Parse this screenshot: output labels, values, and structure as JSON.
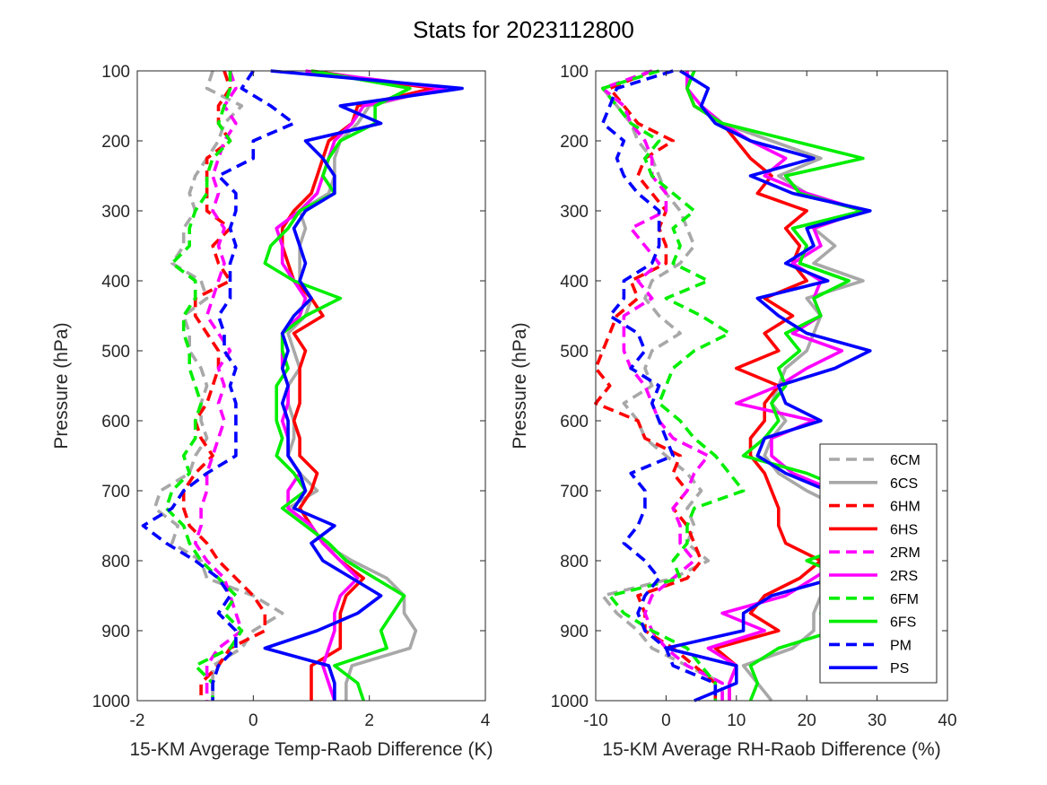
{
  "title": "Stats for 2023112800",
  "legend": {
    "placement": "bottom-right of right panel"
  },
  "styles": {
    "6CM": {
      "color": "#a8a8a8",
      "dash": true
    },
    "6CS": {
      "color": "#a8a8a8",
      "dash": false
    },
    "6HM": {
      "color": "#ff0000",
      "dash": true
    },
    "6HS": {
      "color": "#ff0000",
      "dash": false
    },
    "2RM": {
      "color": "#ff00ff",
      "dash": true
    },
    "2RS": {
      "color": "#ff00ff",
      "dash": false
    },
    "6FM": {
      "color": "#00ee00",
      "dash": true
    },
    "6FS": {
      "color": "#00ee00",
      "dash": false
    },
    "PM": {
      "color": "#0000ff",
      "dash": true
    },
    "PS": {
      "color": "#0000ff",
      "dash": false
    }
  },
  "chart_data": [
    {
      "type": "line",
      "orientation": "profile",
      "xlabel": "15-KM Avgerage Temp-Raob Difference (K)",
      "ylabel": "Pressure (hPa)",
      "xlim": [
        -2,
        4
      ],
      "ylim": [
        100,
        1000
      ],
      "y_reversed": true,
      "xticks": [
        -2,
        0,
        2,
        4
      ],
      "yticks": [
        100,
        200,
        300,
        400,
        500,
        600,
        700,
        800,
        900,
        1000
      ],
      "grid": false,
      "pressure": [
        100,
        125,
        150,
        175,
        200,
        225,
        250,
        275,
        300,
        325,
        350,
        375,
        400,
        425,
        450,
        475,
        500,
        525,
        550,
        575,
        600,
        625,
        650,
        675,
        700,
        725,
        750,
        775,
        800,
        825,
        850,
        875,
        900,
        925,
        950,
        975,
        1000
      ],
      "series": [
        {
          "name": "6CM",
          "values": [
            -0.7,
            -0.8,
            -0.2,
            -0.5,
            -0.6,
            -0.8,
            -1.0,
            -1.1,
            -1.0,
            -1.2,
            -1.2,
            -1.4,
            -0.9,
            -0.8,
            -1.2,
            -1.1,
            -1.1,
            -0.9,
            -0.8,
            -0.9,
            -0.9,
            -0.8,
            -1.0,
            -1.1,
            -1.6,
            -1.7,
            -1.3,
            -1.4,
            -0.9,
            -0.8,
            0.0,
            0.5,
            0.0,
            -0.2,
            -0.7,
            -0.7,
            -0.7
          ]
        },
        {
          "name": "6CS",
          "values": [
            1.0,
            3.2,
            2.0,
            1.8,
            1.5,
            1.4,
            1.4,
            1.3,
            0.8,
            0.9,
            0.8,
            0.8,
            0.8,
            1.0,
            0.9,
            0.6,
            0.7,
            0.8,
            0.6,
            0.6,
            0.7,
            0.7,
            0.6,
            0.8,
            1.1,
            0.6,
            1.0,
            1.2,
            1.7,
            2.3,
            2.6,
            2.6,
            2.8,
            2.7,
            1.7,
            1.6,
            1.6
          ]
        },
        {
          "name": "6HM",
          "values": [
            -0.5,
            -0.4,
            -0.6,
            -0.6,
            -0.4,
            -0.8,
            -0.8,
            -0.8,
            -0.8,
            -0.4,
            -0.7,
            -0.6,
            -0.4,
            -1.0,
            -1.0,
            -0.8,
            -0.6,
            -0.6,
            -0.7,
            -0.8,
            -1.0,
            -0.9,
            -0.7,
            -1.0,
            -1.2,
            -1.2,
            -1.1,
            -0.8,
            -0.6,
            -0.3,
            0.0,
            0.2,
            0.2,
            -0.4,
            -0.6,
            -0.9,
            -0.9
          ]
        },
        {
          "name": "6HS",
          "values": [
            1.0,
            3.1,
            1.8,
            1.7,
            1.3,
            1.2,
            1.1,
            1.0,
            0.7,
            0.5,
            0.5,
            0.6,
            0.7,
            1.0,
            1.2,
            0.7,
            0.9,
            0.8,
            0.8,
            0.8,
            0.7,
            0.8,
            0.8,
            1.1,
            1.0,
            0.8,
            1.0,
            1.2,
            1.5,
            1.9,
            1.6,
            1.5,
            1.5,
            1.5,
            1.0,
            1.0,
            1.0
          ]
        },
        {
          "name": "2RM",
          "values": [
            -0.4,
            -0.3,
            -0.5,
            -0.3,
            -0.5,
            -0.6,
            -0.7,
            -0.6,
            -0.7,
            -0.5,
            -0.6,
            -0.5,
            -0.6,
            -0.7,
            -0.8,
            -0.6,
            -0.4,
            -0.6,
            -0.5,
            -0.6,
            -0.5,
            -0.6,
            -0.7,
            -0.8,
            -0.8,
            -0.9,
            -0.9,
            -1.0,
            -0.8,
            -0.5,
            -0.4,
            -0.3,
            -0.2,
            -0.6,
            -0.8,
            -0.8,
            -0.8
          ]
        },
        {
          "name": "2RS",
          "values": [
            0.9,
            3.3,
            1.9,
            1.7,
            1.4,
            1.3,
            1.2,
            1.1,
            0.8,
            0.4,
            0.5,
            0.5,
            0.7,
            0.9,
            0.8,
            0.5,
            0.5,
            0.5,
            0.6,
            0.6,
            0.5,
            0.6,
            0.6,
            0.8,
            0.6,
            0.6,
            1.0,
            1.2,
            1.5,
            1.8,
            1.5,
            1.4,
            1.4,
            1.3,
            1.2,
            1.3,
            1.4
          ]
        },
        {
          "name": "6FM",
          "values": [
            -0.4,
            -0.4,
            -0.5,
            -0.6,
            -0.4,
            -0.7,
            -0.8,
            -0.8,
            -1.0,
            -1.1,
            -1.1,
            -1.4,
            -1.0,
            -1.0,
            -1.2,
            -1.2,
            -1.1,
            -1.1,
            -1.0,
            -0.9,
            -1.0,
            -1.0,
            -1.2,
            -1.1,
            -1.4,
            -1.5,
            -1.2,
            -1.1,
            -0.9,
            -0.6,
            -0.3,
            -0.5,
            -0.2,
            -0.4,
            -1.0,
            -0.7,
            -0.7
          ]
        },
        {
          "name": "6FS",
          "values": [
            1.0,
            2.7,
            2.1,
            2.1,
            1.5,
            1.3,
            1.2,
            1.4,
            0.8,
            0.6,
            0.3,
            0.2,
            0.7,
            1.5,
            0.9,
            0.5,
            0.5,
            0.6,
            0.4,
            0.4,
            0.4,
            0.5,
            0.4,
            0.7,
            0.9,
            0.5,
            0.9,
            1.3,
            1.6,
            2.1,
            2.6,
            2.4,
            2.2,
            2.3,
            1.4,
            1.8,
            1.9
          ]
        },
        {
          "name": "PM",
          "values": [
            0.0,
            -0.2,
            0.3,
            0.7,
            0.0,
            0.0,
            -0.6,
            -0.3,
            -0.3,
            -0.4,
            -0.3,
            -0.4,
            -0.4,
            -0.4,
            -0.6,
            -0.5,
            -0.5,
            -0.3,
            -0.4,
            -0.3,
            -0.3,
            -0.3,
            -0.3,
            -0.8,
            -1.2,
            -1.4,
            -1.9,
            -1.5,
            -1.0,
            -0.6,
            -0.4,
            -0.6,
            -0.3,
            -0.3,
            -0.6,
            -0.7,
            -0.7
          ]
        },
        {
          "name": "PS",
          "values": [
            0.3,
            3.6,
            1.5,
            2.2,
            0.9,
            1.2,
            1.4,
            1.4,
            0.9,
            0.7,
            0.8,
            0.9,
            0.8,
            1.0,
            0.7,
            0.5,
            0.6,
            0.5,
            0.6,
            0.5,
            0.6,
            0.6,
            0.6,
            0.8,
            0.9,
            0.7,
            1.4,
            1.0,
            1.2,
            1.7,
            2.2,
            1.8,
            1.1,
            0.2,
            1.3,
            1.4,
            1.4
          ]
        }
      ]
    },
    {
      "type": "line",
      "orientation": "profile",
      "xlabel": "15-KM Average RH-Raob Difference (%)",
      "ylabel": "Pressure (hPa)",
      "xlim": [
        -10,
        40
      ],
      "ylim": [
        100,
        1000
      ],
      "y_reversed": true,
      "xticks": [
        -10,
        0,
        10,
        20,
        30,
        40
      ],
      "yticks": [
        100,
        200,
        300,
        400,
        500,
        600,
        700,
        800,
        900,
        1000
      ],
      "grid": false,
      "pressure": [
        100,
        125,
        150,
        175,
        200,
        225,
        250,
        275,
        300,
        325,
        350,
        375,
        400,
        425,
        450,
        475,
        500,
        525,
        550,
        575,
        600,
        625,
        650,
        675,
        700,
        725,
        750,
        775,
        800,
        825,
        850,
        875,
        900,
        925,
        950,
        975,
        1000
      ],
      "series": [
        {
          "name": "6CM",
          "values": [
            -2,
            -9,
            -7,
            -5,
            -4,
            -2,
            -1,
            0,
            2,
            3,
            4,
            2,
            -2,
            -3,
            -1,
            2,
            -2,
            -3,
            -2,
            -6,
            -4,
            -3,
            0,
            3,
            5,
            3,
            4,
            3,
            6,
            1,
            -9,
            -7,
            -4,
            -2,
            3,
            8,
            8
          ]
        },
        {
          "name": "6CS",
          "values": [
            4,
            3,
            4,
            8,
            15,
            22,
            16,
            20,
            28,
            21,
            24,
            21,
            28,
            20,
            22,
            21,
            20,
            17,
            16,
            15,
            17,
            15,
            14,
            16,
            20,
            25,
            24,
            26,
            25,
            22,
            22,
            21,
            21,
            18,
            11,
            13,
            15
          ]
        },
        {
          "name": "6HM",
          "values": [
            -2,
            -8,
            -6,
            -4,
            1,
            -3,
            -4,
            -2,
            0,
            -1,
            0,
            0,
            -5,
            -4,
            -7,
            -8,
            -9,
            -10,
            -8,
            -10,
            -4,
            -3,
            2,
            1,
            3,
            1,
            3,
            4,
            5,
            3,
            -4,
            -3,
            -3,
            1,
            4,
            7,
            7
          ]
        },
        {
          "name": "6HS",
          "values": [
            3,
            3,
            4,
            8,
            10,
            12,
            15,
            13,
            20,
            17,
            19,
            18,
            20,
            14,
            18,
            14,
            16,
            10,
            16,
            14,
            14,
            12,
            12,
            14,
            15,
            16,
            16,
            17,
            22,
            19,
            14,
            12,
            16,
            7,
            10,
            9,
            9
          ]
        },
        {
          "name": "2RM",
          "values": [
            -2,
            -9,
            -6,
            -5,
            -3,
            -2,
            -2,
            0,
            0,
            -5,
            -3,
            -1,
            -4,
            -2,
            -6,
            -6,
            -6,
            -5,
            -3,
            -2,
            -1,
            1,
            6,
            4,
            3,
            1,
            2,
            2,
            4,
            1,
            -2,
            -3,
            -2,
            0,
            3,
            8,
            8
          ]
        },
        {
          "name": "2RS",
          "values": [
            3,
            3,
            5,
            8,
            12,
            17,
            14,
            20,
            28,
            21,
            22,
            18,
            22,
            21,
            22,
            18,
            25,
            20,
            16,
            10,
            21,
            15,
            15,
            18,
            24,
            24,
            25,
            27,
            25,
            21,
            17,
            8,
            14,
            6,
            10,
            9,
            9
          ]
        },
        {
          "name": "6FM",
          "values": [
            -1,
            -9,
            -7,
            -5,
            -1,
            -3,
            -2,
            1,
            4,
            1,
            2,
            1,
            6,
            0,
            5,
            9,
            4,
            1,
            0,
            -1,
            2,
            4,
            7,
            9,
            11,
            4,
            3,
            3,
            1,
            2,
            -8,
            -6,
            -2,
            3,
            5,
            7,
            7
          ]
        },
        {
          "name": "6FS",
          "values": [
            4,
            3,
            4,
            8,
            18,
            28,
            17,
            19,
            28,
            18,
            20,
            19,
            26,
            21,
            22,
            17,
            19,
            16,
            17,
            15,
            16,
            14,
            11,
            20,
            26,
            27,
            26,
            27,
            20,
            26,
            25,
            22,
            24,
            16,
            12,
            13,
            12
          ]
        },
        {
          "name": "PM",
          "values": [
            1,
            -7,
            -8,
            -9,
            -6,
            -7,
            -6,
            -4,
            -1,
            -1,
            -1,
            -2,
            -6,
            -6,
            -8,
            -4,
            -3,
            -5,
            -1,
            -2,
            -1,
            0,
            1,
            -5,
            -3,
            -3,
            -4,
            -6,
            -3,
            -1,
            -3,
            -4,
            -3,
            0,
            1,
            7,
            7
          ]
        },
        {
          "name": "PS",
          "values": [
            2,
            6,
            5,
            7,
            12,
            21,
            12,
            18,
            29,
            20,
            21,
            17,
            23,
            13,
            16,
            20,
            29,
            24,
            16,
            17,
            22,
            14,
            13,
            17,
            23,
            26,
            26,
            28,
            25,
            24,
            15,
            11,
            11,
            0,
            10,
            10,
            4
          ]
        }
      ]
    }
  ]
}
